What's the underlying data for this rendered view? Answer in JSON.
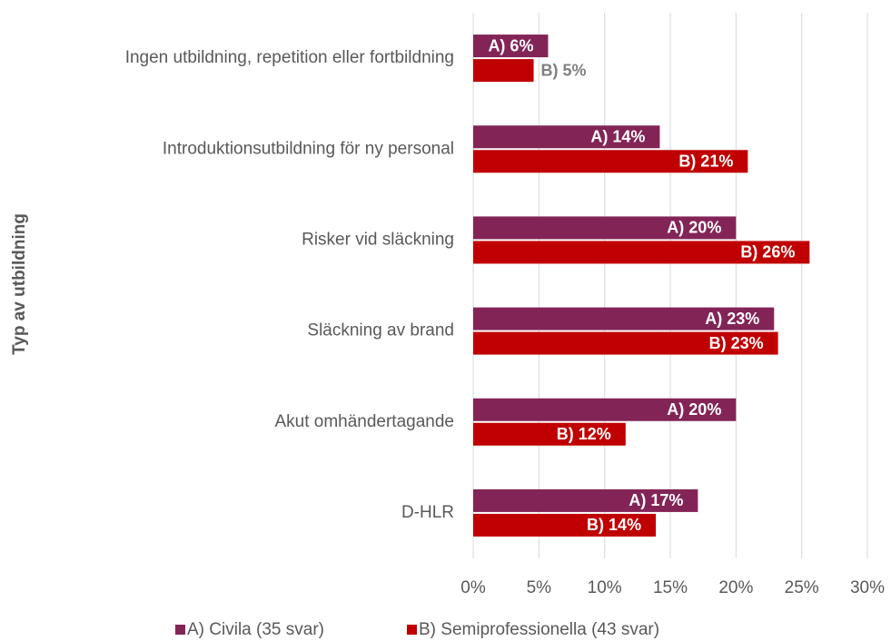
{
  "chart_data": {
    "type": "hbar",
    "y_axis_label": "Typ av utbildning",
    "categories": [
      "Ingen utbildning, repetition eller fortbildning",
      "Introduktionsutbildning för ny personal",
      "Risker vid släckning",
      "Släckning av brand",
      "Akut omhändertagande",
      "D-HLR"
    ],
    "series": [
      {
        "name": "A) Civila (35 svar)",
        "color": "#832457",
        "values": [
          5.7,
          14.2,
          20.0,
          22.9,
          20.0,
          17.1
        ],
        "value_labels": [
          "A) 6%",
          "A) 14%",
          "A) 20%",
          "A) 23%",
          "A) 20%",
          "A) 17%"
        ]
      },
      {
        "name": "B) Semiprofessionella (43 svar)",
        "color": "#c00000",
        "values": [
          4.6,
          20.9,
          25.6,
          23.2,
          11.6,
          13.9
        ],
        "value_labels": [
          "B) 5%",
          "B) 21%",
          "B) 26%",
          "B) 23%",
          "B) 12%",
          "B) 14%"
        ]
      }
    ],
    "xlim": [
      0,
      30
    ],
    "xticks": [
      {
        "value": 0,
        "label": "0%"
      },
      {
        "value": 5,
        "label": "5%"
      },
      {
        "value": 10,
        "label": "10%"
      },
      {
        "value": 15,
        "label": "15%"
      },
      {
        "value": 20,
        "label": "20%"
      },
      {
        "value": 25,
        "label": "25%"
      },
      {
        "value": 30,
        "label": "30%"
      }
    ],
    "grid": true,
    "legend": "bottom"
  }
}
